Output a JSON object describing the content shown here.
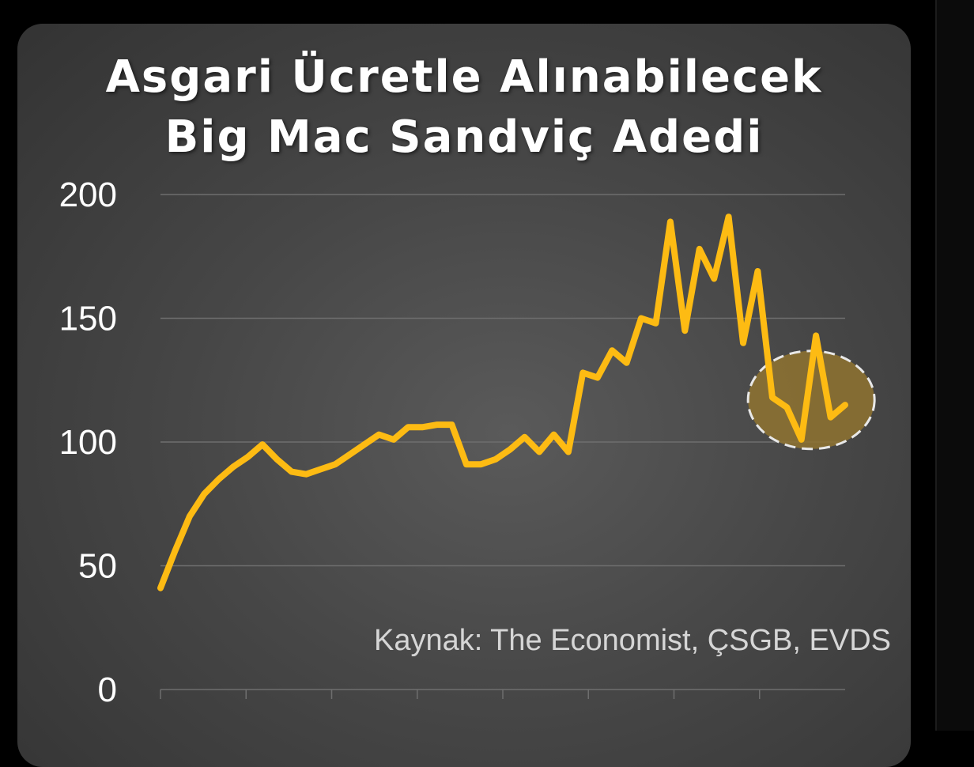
{
  "chart_data": {
    "type": "line",
    "title_lines": [
      "Asgari Ücretle Alınabilecek",
      "Big Mac Sandviç Adedi"
    ],
    "source_note": "Kaynak: The Economist, ÇSGB, EVDS",
    "ylim": [
      0,
      200
    ],
    "y_ticks": [
      "0",
      "50",
      "100",
      "150",
      "200"
    ],
    "grid": true,
    "x_tick_count": 8,
    "series": [
      {
        "color": "#FDBB13",
        "values": [
          41,
          56,
          70,
          79,
          85,
          90,
          94,
          99,
          93,
          88,
          87,
          89,
          91,
          95,
          99,
          103,
          101,
          106,
          106,
          107,
          107,
          91,
          91,
          93,
          97,
          102,
          96,
          103,
          96,
          128,
          126,
          137,
          132,
          150,
          148,
          189,
          145,
          178,
          166,
          191,
          140,
          169,
          118,
          114,
          101,
          143,
          110,
          115
        ]
      }
    ],
    "highlight": {
      "center_index": 45,
      "label": ""
    },
    "colors": {
      "line": "#FDBB13",
      "highlight_fill": "#8f7330",
      "highlight_stroke": "#e8e8e8",
      "grid": "#6e6e6e",
      "text": "#ffffff",
      "source_text": "#d6d6d6"
    }
  }
}
